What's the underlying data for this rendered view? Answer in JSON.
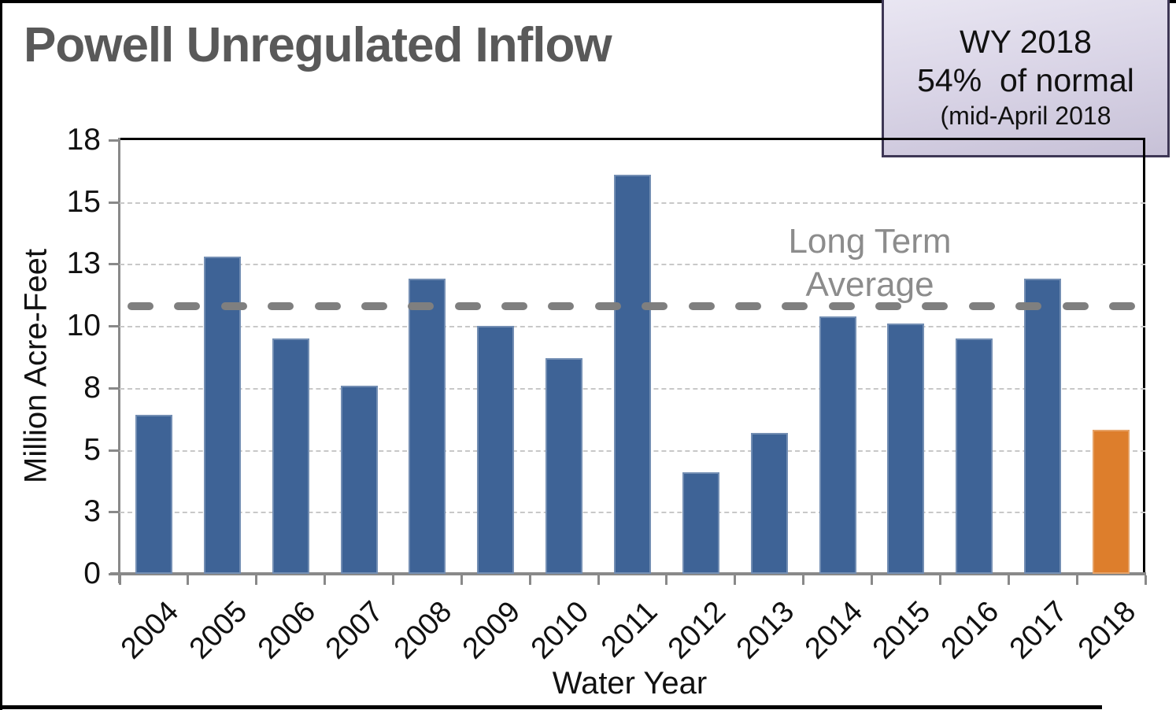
{
  "title": "Powell Unregulated Inflow",
  "annotation_box": {
    "line1": "WY 2018",
    "line2": "54%  of normal",
    "line3": "(mid-April 2018"
  },
  "chart_data": {
    "type": "bar",
    "title": "Powell Unregulated Inflow",
    "categories": [
      "2004",
      "2005",
      "2006",
      "2007",
      "2008",
      "2009",
      "2010",
      "2011",
      "2012",
      "2013",
      "2014",
      "2015",
      "2016",
      "2017",
      "2018"
    ],
    "values": [
      6.4,
      12.8,
      9.5,
      7.6,
      11.9,
      10.0,
      8.7,
      16.1,
      4.1,
      5.7,
      10.4,
      10.1,
      9.5,
      11.9,
      5.8
    ],
    "xlabel": "Water Year",
    "ylabel": "Million Acre-Feet",
    "ylim": [
      0,
      17.5
    ],
    "y_tick_interval": 2.5,
    "y_tick_labels_bottom_up": [
      "0",
      "3",
      "5",
      "8",
      "10",
      "13",
      "15",
      "18"
    ],
    "grid": "horizontal-dashed",
    "legend": "none",
    "reference_line": {
      "value": 10.8,
      "label_lines": [
        "Long Term",
        "Average"
      ]
    },
    "colors": {
      "bar": "#3E6396",
      "highlight_bar": "#DD7E2C",
      "highlight_category": "2018",
      "axis": "#898989",
      "gridline": "#C8C8C8",
      "reference_line": "#7F7F7F",
      "reference_label": "#8C8C8C",
      "title": "#595959",
      "annotation_border": "#3E3755"
    }
  }
}
